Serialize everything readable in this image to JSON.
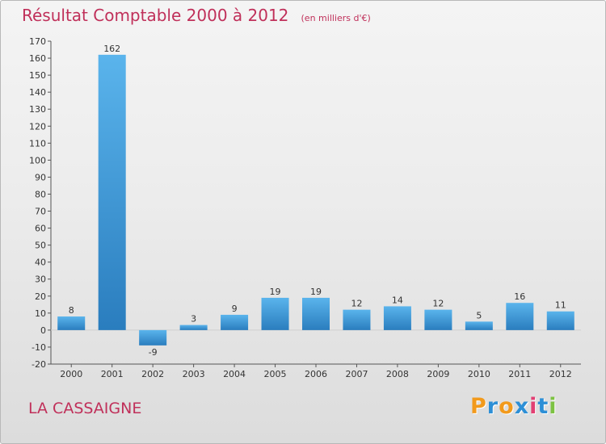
{
  "chart_data": {
    "type": "bar",
    "title": "Résultat Comptable 2000 à 2012",
    "subtitle": "(en milliers d'€)",
    "categories": [
      "2000",
      "2001",
      "2002",
      "2003",
      "2004",
      "2005",
      "2006",
      "2007",
      "2008",
      "2009",
      "2010",
      "2011",
      "2012"
    ],
    "values": [
      8,
      162,
      -9,
      3,
      9,
      19,
      19,
      12,
      14,
      12,
      5,
      16,
      11
    ],
    "data_labels": [
      "8",
      "162",
      "-9",
      "3",
      "9",
      "19",
      "19",
      "12",
      "14",
      "12",
      "5",
      "16",
      "11"
    ],
    "ylim": [
      -20,
      170
    ],
    "yticks": [
      -20,
      -10,
      0,
      10,
      20,
      30,
      40,
      50,
      60,
      70,
      80,
      90,
      100,
      110,
      120,
      130,
      140,
      150,
      160,
      170
    ],
    "ytick_labels": [
      "-20",
      "-10",
      "0",
      "10",
      "20",
      "30",
      "40",
      "50",
      "60",
      "70",
      "80",
      "90",
      "100",
      "110",
      "120",
      "130",
      "140",
      "150",
      "160",
      "170"
    ],
    "xlabel": "",
    "ylabel": "",
    "grid": false,
    "bar_color_top": "#5ab4ec",
    "bar_color_bottom": "#2a7dbe",
    "axis_color": "#555555",
    "text_color": "#333333"
  },
  "footer": {
    "commune": "LA CASSAIGNE"
  },
  "logo": {
    "text": "Proxiti",
    "letters": [
      "P",
      "r",
      "o",
      "x",
      "i",
      "t",
      "i"
    ],
    "colors": [
      "#f29a1c",
      "#2d8fd6",
      "#f29a1c",
      "#2d8fd6",
      "#e23f73",
      "#2d8fd6",
      "#7cc242"
    ]
  }
}
